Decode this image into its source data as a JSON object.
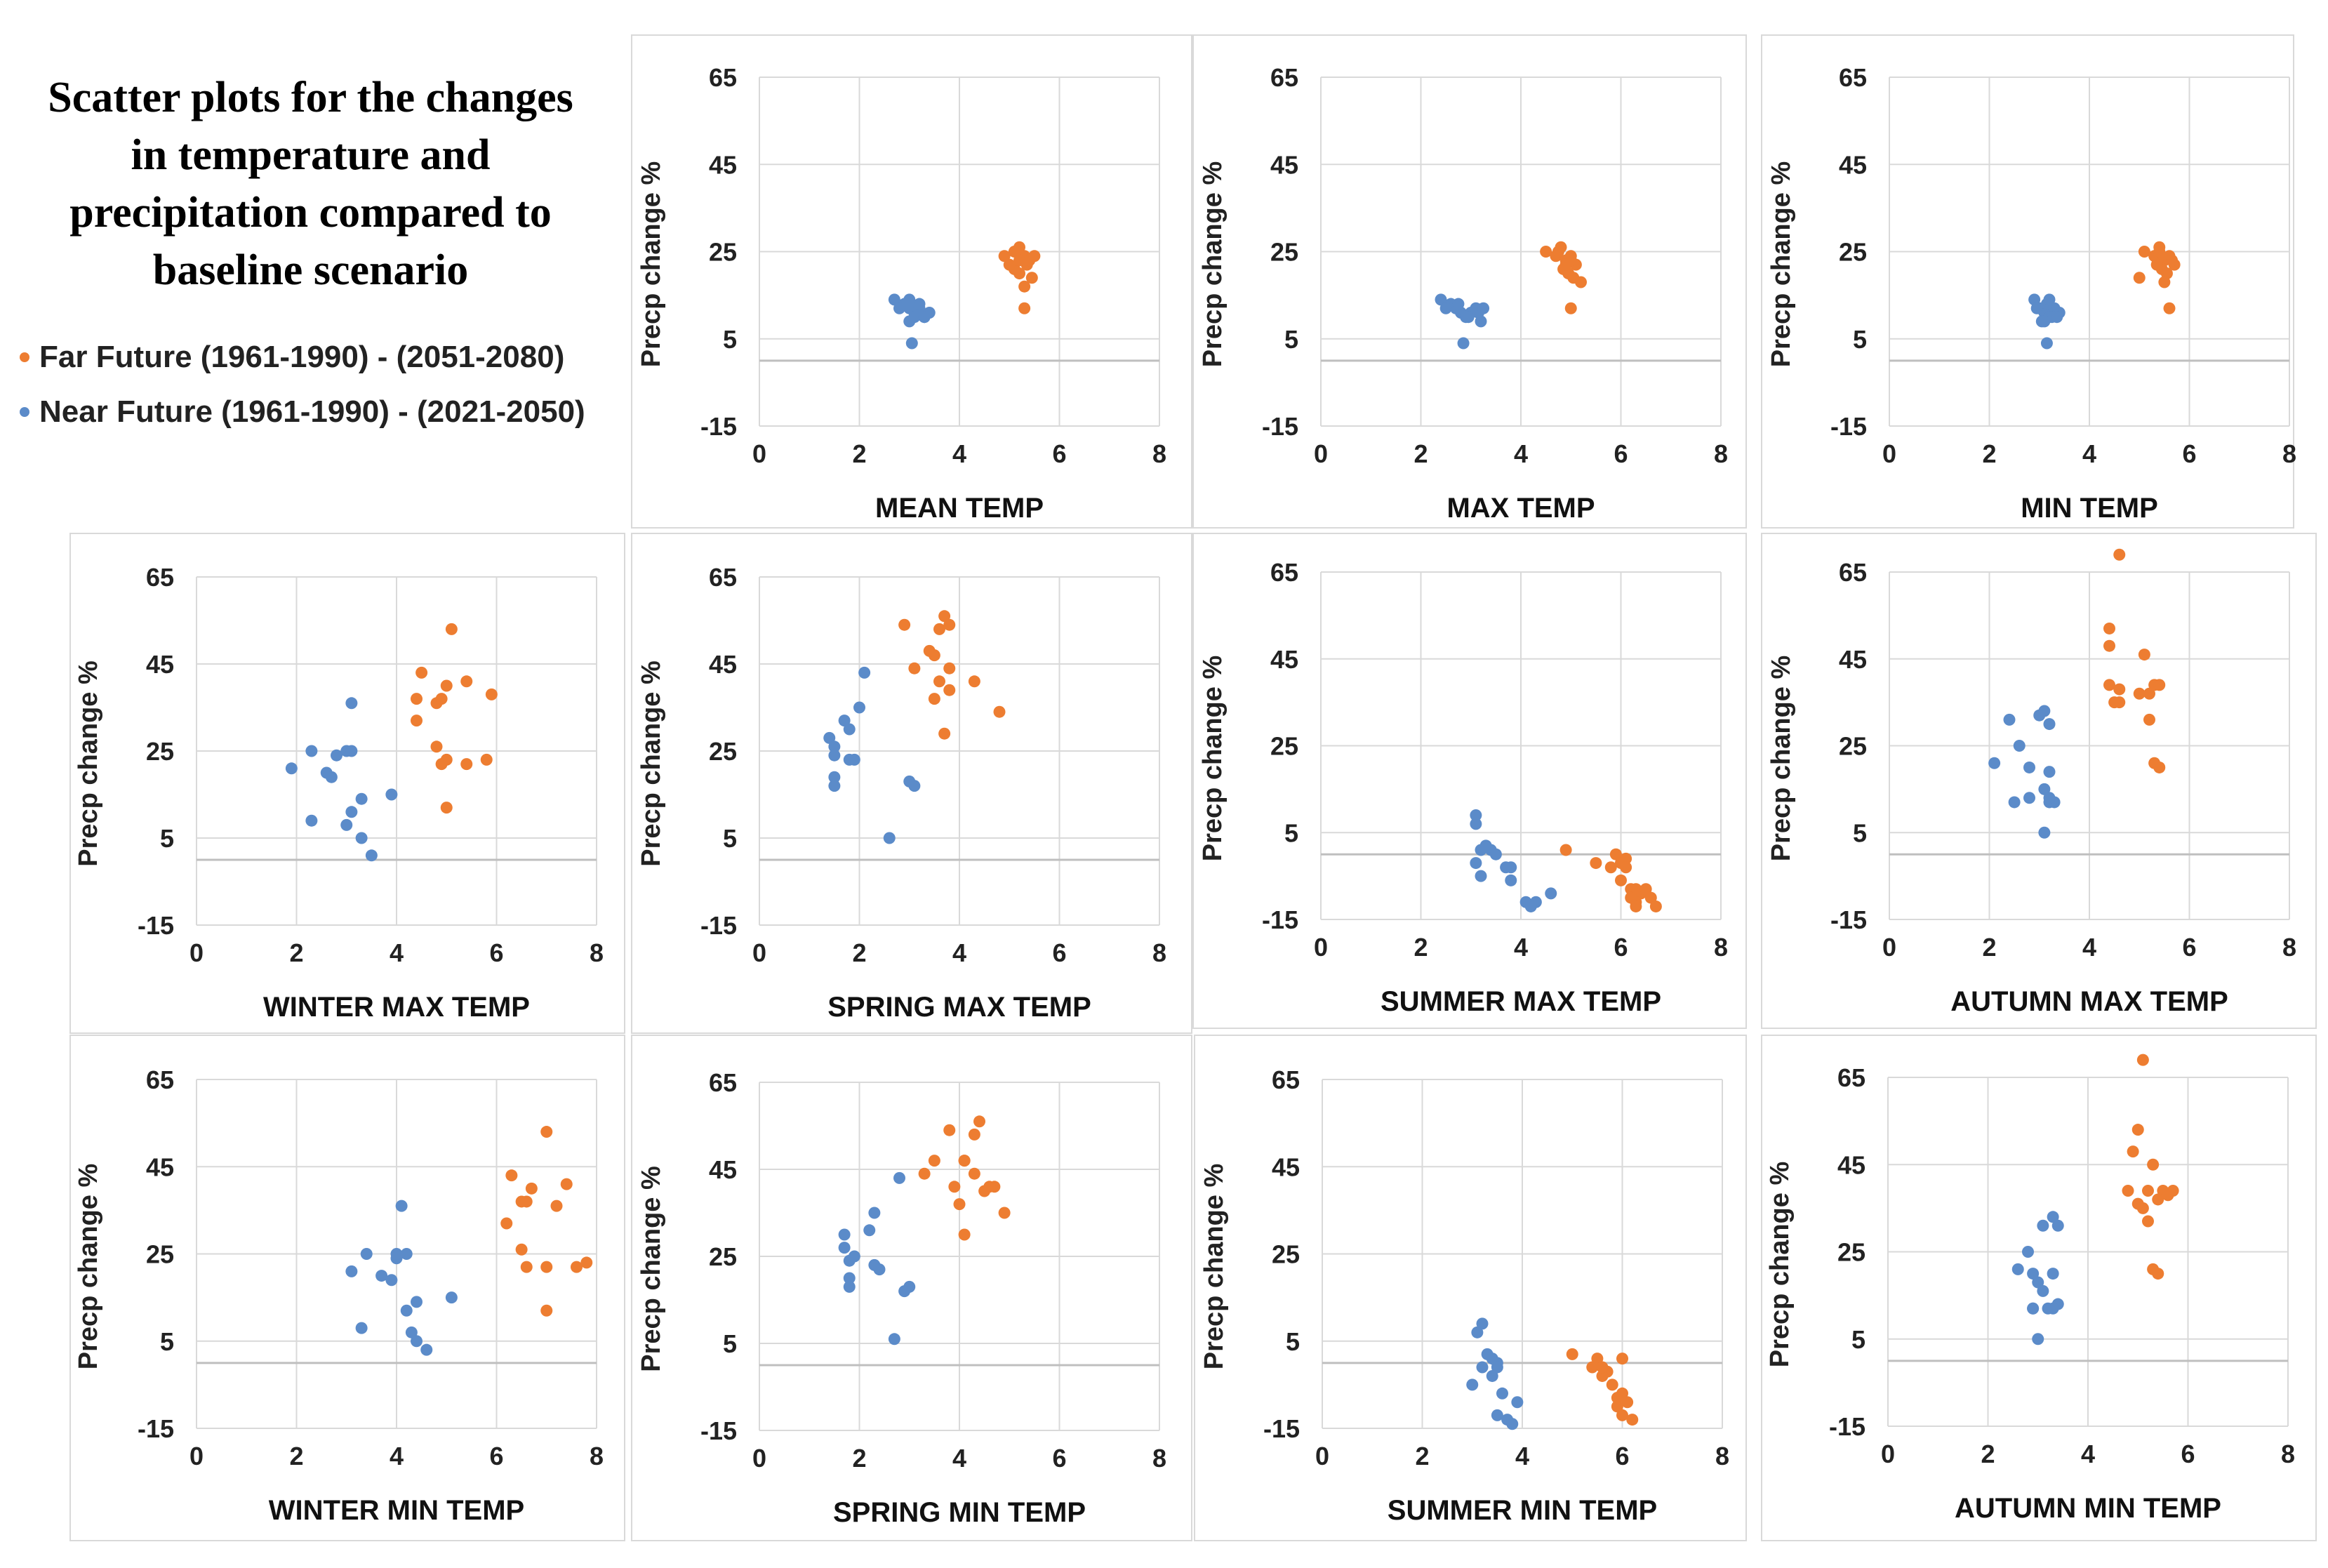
{
  "figure": {
    "title_lines": [
      "Scatter plots for the changes",
      "in temperature and",
      "precipitation compared to",
      "baseline scenario"
    ],
    "legend": [
      {
        "label": "Far Future (1961-1990) - (2051-2080)",
        "color": "#ED7D31"
      },
      {
        "label": "Near Future (1961-1990) - (2021-2050)",
        "color": "#5B8BC9"
      }
    ]
  },
  "chart_data": [
    {
      "type": "scatter",
      "title": "MEAN TEMP",
      "xlabel": "MEAN TEMP",
      "ylabel": "Precp change %",
      "xlim": [
        0,
        8
      ],
      "ylim": [
        -15,
        65
      ],
      "xticks": [
        0,
        2,
        4,
        6,
        8
      ],
      "yticks": [
        65,
        45,
        25,
        5,
        -15
      ],
      "series": [
        {
          "name": "Far Future (1961-1990) - (2051-2080)",
          "color": "#ED7D31",
          "x": [
            4.9,
            5.1,
            5.2,
            5.3,
            5.35,
            5.4,
            5.5,
            5.2,
            5.1,
            5.3,
            5.45,
            5.0,
            5.3,
            5.2
          ],
          "y": [
            24,
            25,
            26,
            24,
            22,
            23,
            24,
            20,
            21,
            17,
            19,
            22,
            12,
            23
          ]
        },
        {
          "name": "Near Future (1961-1990) - (2021-2050)",
          "color": "#5B8BC9",
          "x": [
            2.7,
            2.9,
            3.0,
            3.1,
            3.2,
            3.3,
            3.4,
            3.0,
            3.1,
            3.2,
            2.8,
            3.0,
            3.3,
            3.05
          ],
          "y": [
            14,
            13,
            12,
            11,
            12,
            10,
            11,
            9,
            10,
            13,
            12,
            14,
            10,
            4
          ]
        }
      ]
    },
    {
      "type": "scatter",
      "title": "MAX TEMP",
      "xlabel": "MAX TEMP",
      "ylabel": "Precp change %",
      "xlim": [
        0,
        8
      ],
      "ylim": [
        -15,
        65
      ],
      "xticks": [
        0,
        2,
        4,
        6,
        8
      ],
      "yticks": [
        65,
        45,
        25,
        5,
        -15
      ],
      "series": [
        {
          "name": "Far Future (1961-1990) - (2051-2080)",
          "color": "#ED7D31",
          "x": [
            4.5,
            4.7,
            4.8,
            4.9,
            5.0,
            5.1,
            4.85,
            4.95,
            5.05,
            5.2,
            4.75,
            5.0,
            4.9,
            5.0
          ],
          "y": [
            25,
            24,
            26,
            23,
            24,
            22,
            21,
            20,
            19,
            18,
            25,
            23,
            22,
            12
          ]
        },
        {
          "name": "Near Future (1961-1990) - (2021-2050)",
          "color": "#5B8BC9",
          "x": [
            2.4,
            2.6,
            2.7,
            2.8,
            2.9,
            3.0,
            3.1,
            3.2,
            2.5,
            2.75,
            2.95,
            3.15,
            3.25,
            2.85
          ],
          "y": [
            14,
            13,
            12,
            11,
            10,
            11,
            12,
            9,
            12,
            13,
            10,
            11,
            12,
            4
          ]
        }
      ]
    },
    {
      "type": "scatter",
      "title": "MIN TEMP",
      "xlabel": "MIN TEMP",
      "ylabel": "Precp change %",
      "xlim": [
        0,
        8
      ],
      "ylim": [
        -15,
        65
      ],
      "xticks": [
        0,
        2,
        4,
        6,
        8
      ],
      "yticks": [
        65,
        45,
        25,
        5,
        -15
      ],
      "series": [
        {
          "name": "Far Future (1961-1990) - (2051-2080)",
          "color": "#ED7D31",
          "x": [
            5.1,
            5.3,
            5.4,
            5.5,
            5.6,
            5.7,
            5.45,
            5.35,
            5.55,
            5.65,
            5.5,
            5.0,
            5.6,
            5.4
          ],
          "y": [
            25,
            24,
            26,
            23,
            24,
            22,
            21,
            22,
            20,
            23,
            18,
            19,
            12,
            25
          ]
        },
        {
          "name": "Near Future (1961-1990) - (2021-2050)",
          "color": "#5B8BC9",
          "x": [
            2.9,
            3.0,
            3.1,
            3.2,
            3.3,
            3.4,
            3.05,
            3.15,
            3.25,
            2.95,
            3.35,
            3.1,
            3.2,
            3.15
          ],
          "y": [
            14,
            12,
            11,
            10,
            12,
            11,
            9,
            13,
            10,
            12,
            10,
            9,
            14,
            4
          ]
        }
      ]
    },
    {
      "type": "scatter",
      "title": "WINTER MAX TEMP",
      "xlabel": "WINTER MAX TEMP",
      "ylabel": "Precp change %",
      "xlim": [
        0,
        8
      ],
      "ylim": [
        -15,
        65
      ],
      "xticks": [
        0,
        2,
        4,
        6,
        8
      ],
      "yticks": [
        65,
        45,
        25,
        5,
        -15
      ],
      "series": [
        {
          "name": "Far Future (1961-1990) - (2051-2080)",
          "color": "#ED7D31",
          "x": [
            5.1,
            4.5,
            4.4,
            4.8,
            4.9,
            5.4,
            5.0,
            5.9,
            4.4,
            4.8,
            5.0,
            5.4,
            5.8,
            4.9,
            5.0
          ],
          "y": [
            53,
            43,
            37,
            36,
            37,
            41,
            40,
            38,
            32,
            26,
            23,
            22,
            23,
            22,
            12
          ]
        },
        {
          "name": "Near Future (1961-1990) - (2021-2050)",
          "color": "#5B8BC9",
          "x": [
            3.1,
            1.9,
            2.3,
            2.6,
            2.8,
            3.0,
            3.1,
            3.3,
            3.9,
            3.1,
            2.3,
            3.0,
            3.3,
            3.5,
            2.7
          ],
          "y": [
            36,
            21,
            25,
            20,
            24,
            25,
            25,
            14,
            15,
            11,
            9,
            8,
            5,
            1,
            19
          ]
        }
      ]
    },
    {
      "type": "scatter",
      "title": "SPRING MAX TEMP",
      "xlabel": "SPRING MAX TEMP",
      "ylabel": "Precp change %",
      "xlim": [
        0,
        8
      ],
      "ylim": [
        -15,
        65
      ],
      "xticks": [
        0,
        2,
        4,
        6,
        8
      ],
      "yticks": [
        65,
        45,
        25,
        5,
        -15
      ],
      "series": [
        {
          "name": "Far Future (1961-1990) - (2051-2080)",
          "color": "#ED7D31",
          "x": [
            2.9,
            3.7,
            3.6,
            3.8,
            3.5,
            3.4,
            3.6,
            3.8,
            4.3,
            3.5,
            3.8,
            4.8,
            3.7,
            3.1
          ],
          "y": [
            54,
            56,
            53,
            54,
            47,
            48,
            41,
            44,
            41,
            37,
            39,
            34,
            29,
            44
          ]
        },
        {
          "name": "Near Future (1961-1990) - (2021-2050)",
          "color": "#5B8BC9",
          "x": [
            2.1,
            2.0,
            1.7,
            1.8,
            1.4,
            1.5,
            1.5,
            1.9,
            1.5,
            1.5,
            3.0,
            3.1,
            2.6,
            1.8
          ],
          "y": [
            43,
            35,
            32,
            30,
            28,
            26,
            24,
            23,
            19,
            17,
            18,
            17,
            5,
            23
          ]
        }
      ]
    },
    {
      "type": "scatter",
      "title": "SUMMER MAX TEMP",
      "xlabel": "SUMMER MAX TEMP",
      "ylabel": "Precp change %",
      "xlim": [
        0,
        8
      ],
      "ylim": [
        -15,
        65
      ],
      "xticks": [
        0,
        2,
        4,
        6,
        8
      ],
      "yticks": [
        65,
        45,
        25,
        5,
        -15
      ],
      "series": [
        {
          "name": "Far Future (1961-1990) - (2051-2080)",
          "color": "#ED7D31",
          "x": [
            4.9,
            5.5,
            5.9,
            6.1,
            6.0,
            5.8,
            6.1,
            6.0,
            6.2,
            6.3,
            6.4,
            6.5,
            6.3,
            6.6,
            6.7,
            6.3,
            6.2
          ],
          "y": [
            1,
            -2,
            0,
            -1,
            -2,
            -3,
            -3,
            -6,
            -8,
            -8,
            -9,
            -8,
            -11,
            -10,
            -12,
            -12,
            -10
          ]
        },
        {
          "name": "Near Future (1961-1990) - (2021-2050)",
          "color": "#5B8BC9",
          "x": [
            3.1,
            3.1,
            3.2,
            3.3,
            3.4,
            3.1,
            3.5,
            3.8,
            3.7,
            3.2,
            3.8,
            4.1,
            4.3,
            4.6,
            4.2
          ],
          "y": [
            9,
            7,
            1,
            2,
            1,
            -2,
            0,
            -3,
            -3,
            -5,
            -6,
            -11,
            -11,
            -9,
            -12
          ]
        }
      ]
    },
    {
      "type": "scatter",
      "title": "AUTUMN MAX TEMP",
      "xlabel": "AUTUMN MAX TEMP",
      "ylabel": "Precp change %",
      "xlim": [
        0,
        8
      ],
      "ylim": [
        -15,
        65
      ],
      "xticks": [
        0,
        2,
        4,
        6,
        8
      ],
      "yticks": [
        65,
        45,
        25,
        5,
        -15
      ],
      "series": [
        {
          "name": "Far Future (1961-1990) - (2051-2080)",
          "color": "#ED7D31",
          "x": [
            4.6,
            4.4,
            4.4,
            4.4,
            4.6,
            5.1,
            5.3,
            5.4,
            5.0,
            4.5,
            4.6,
            5.2,
            5.3,
            5.4,
            5.2
          ],
          "y": [
            69,
            52,
            48,
            39,
            38,
            46,
            39,
            39,
            37,
            35,
            35,
            31,
            21,
            20,
            37
          ]
        },
        {
          "name": "Near Future (1961-1990) - (2021-2050)",
          "color": "#5B8BC9",
          "x": [
            3.1,
            3.0,
            3.2,
            2.4,
            2.6,
            2.1,
            2.8,
            3.2,
            3.1,
            3.2,
            2.8,
            2.5,
            3.3,
            3.2,
            3.1
          ],
          "y": [
            33,
            32,
            30,
            31,
            25,
            21,
            20,
            19,
            15,
            12,
            13,
            12,
            12,
            13,
            5
          ]
        }
      ]
    },
    {
      "type": "scatter",
      "title": "WINTER MIN TEMP",
      "xlabel": "WINTER MIN TEMP",
      "ylabel": "Precp change %",
      "xlim": [
        0,
        8
      ],
      "ylim": [
        -15,
        65
      ],
      "xticks": [
        0,
        2,
        4,
        6,
        8
      ],
      "yticks": [
        65,
        45,
        25,
        5,
        -15
      ],
      "series": [
        {
          "name": "Far Future (1961-1990) - (2051-2080)",
          "color": "#ED7D31",
          "x": [
            7.0,
            6.3,
            7.4,
            6.5,
            6.7,
            6.6,
            7.2,
            6.2,
            6.5,
            7.0,
            6.6,
            7.6,
            7.8,
            7.0
          ],
          "y": [
            53,
            43,
            41,
            37,
            40,
            37,
            36,
            32,
            26,
            22,
            22,
            22,
            23,
            12
          ]
        },
        {
          "name": "Near Future (1961-1990) - (2021-2050)",
          "color": "#5B8BC9",
          "x": [
            4.1,
            3.1,
            3.4,
            3.7,
            4.0,
            4.0,
            4.2,
            4.4,
            5.1,
            3.3,
            4.2,
            4.3,
            4.6,
            4.4,
            3.9
          ],
          "y": [
            36,
            21,
            25,
            20,
            24,
            25,
            25,
            14,
            15,
            8,
            12,
            7,
            3,
            5,
            19
          ]
        }
      ]
    },
    {
      "type": "scatter",
      "title": "SPRING MIN TEMP",
      "xlabel": "SPRING MIN TEMP",
      "ylabel": "Precp change %",
      "xlim": [
        0,
        8
      ],
      "ylim": [
        -15,
        65
      ],
      "xticks": [
        0,
        2,
        4,
        6,
        8
      ],
      "yticks": [
        65,
        45,
        25,
        5,
        -15
      ],
      "series": [
        {
          "name": "Far Future (1961-1990) - (2051-2080)",
          "color": "#ED7D31",
          "x": [
            3.8,
            4.4,
            4.3,
            4.1,
            3.5,
            3.3,
            4.1,
            4.3,
            3.9,
            4.7,
            4.5,
            4.9,
            4.1,
            4.6,
            4.0
          ],
          "y": [
            54,
            56,
            53,
            47,
            47,
            44,
            47,
            44,
            41,
            41,
            40,
            35,
            30,
            41,
            37
          ]
        },
        {
          "name": "Near Future (1961-1990) - (2021-2050)",
          "color": "#5B8BC9",
          "x": [
            2.8,
            2.3,
            2.2,
            1.7,
            1.7,
            1.8,
            1.8,
            2.3,
            2.4,
            1.8,
            3.0,
            2.9,
            2.7,
            1.9
          ],
          "y": [
            43,
            35,
            31,
            30,
            27,
            24,
            20,
            23,
            22,
            18,
            18,
            17,
            6,
            25
          ]
        }
      ]
    },
    {
      "type": "scatter",
      "title": "SUMMER MIN TEMP",
      "xlabel": "SUMMER MIN TEMP",
      "ylabel": "Precp change %",
      "xlim": [
        0,
        8
      ],
      "ylim": [
        -15,
        65
      ],
      "xticks": [
        0,
        2,
        4,
        6,
        8
      ],
      "yticks": [
        65,
        45,
        25,
        5,
        -15
      ],
      "series": [
        {
          "name": "Far Future (1961-1990) - (2051-2080)",
          "color": "#ED7D31",
          "x": [
            5.0,
            5.5,
            6.0,
            5.4,
            5.7,
            5.6,
            5.8,
            6.0,
            5.9,
            6.1,
            5.9,
            6.0,
            6.2,
            5.6
          ],
          "y": [
            2,
            1,
            1,
            -1,
            -2,
            -3,
            -5,
            -7,
            -8,
            -9,
            -10,
            -12,
            -13,
            -1
          ]
        },
        {
          "name": "Near Future (1961-1990) - (2021-2050)",
          "color": "#5B8BC9",
          "x": [
            3.2,
            3.1,
            3.3,
            3.4,
            3.5,
            3.2,
            3.5,
            3.4,
            3.0,
            3.6,
            3.9,
            3.5,
            3.7,
            3.8
          ],
          "y": [
            9,
            7,
            2,
            1,
            0,
            -1,
            -1,
            -3,
            -5,
            -7,
            -9,
            -12,
            -13,
            -14
          ]
        }
      ]
    },
    {
      "type": "scatter",
      "title": "AUTUMN MIN TEMP",
      "xlabel": "AUTUMN MIN TEMP",
      "ylabel": "Precp change %",
      "xlim": [
        0,
        8
      ],
      "ylim": [
        -15,
        65
      ],
      "xticks": [
        0,
        2,
        4,
        6,
        8
      ],
      "yticks": [
        65,
        45,
        25,
        5,
        -15
      ],
      "series": [
        {
          "name": "Far Future (1961-1990) - (2051-2080)",
          "color": "#ED7D31",
          "x": [
            5.1,
            5.0,
            4.9,
            4.8,
            5.3,
            5.5,
            5.2,
            5.4,
            5.7,
            5.1,
            5.0,
            5.2,
            5.3,
            5.4,
            5.6
          ],
          "y": [
            69,
            53,
            48,
            39,
            45,
            39,
            39,
            37,
            39,
            35,
            36,
            32,
            21,
            20,
            38
          ]
        },
        {
          "name": "Near Future (1961-1990) - (2021-2050)",
          "color": "#5B8BC9",
          "x": [
            3.3,
            3.4,
            3.1,
            2.8,
            2.6,
            2.9,
            3.0,
            3.1,
            3.3,
            3.4,
            2.9,
            2.9,
            3.2,
            3.3,
            3.0
          ],
          "y": [
            33,
            31,
            31,
            25,
            21,
            20,
            18,
            16,
            20,
            13,
            12,
            12,
            12,
            12,
            5
          ]
        }
      ]
    }
  ]
}
